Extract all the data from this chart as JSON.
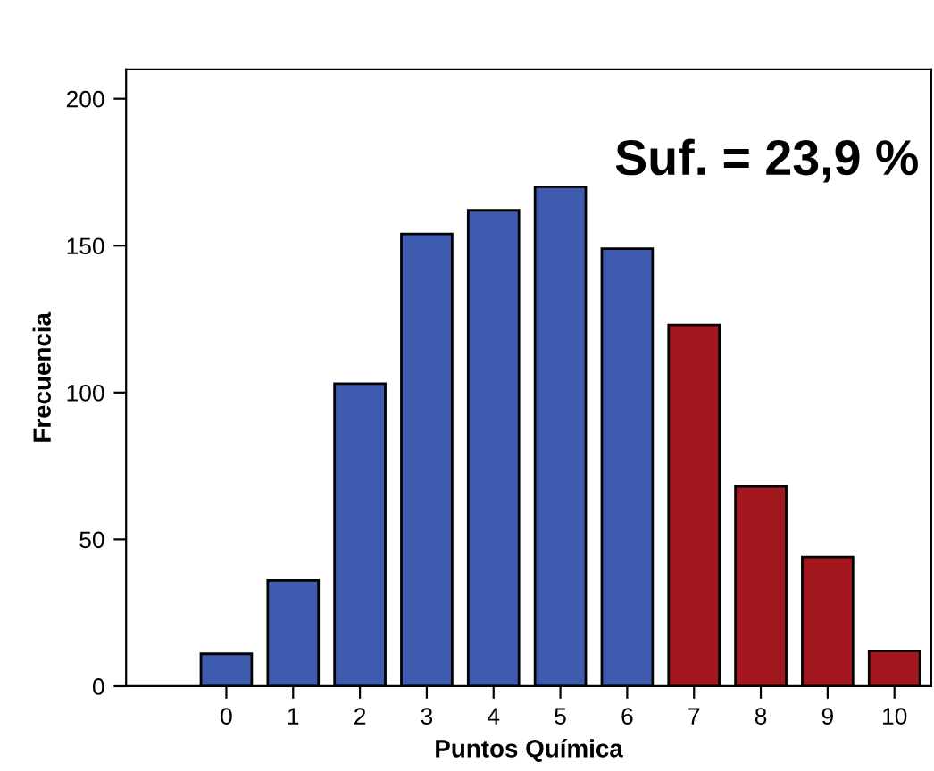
{
  "chart_data": {
    "type": "bar",
    "xlabel": "Puntos Química",
    "ylabel": "Frecuencia",
    "categories": [
      "0",
      "1",
      "2",
      "3",
      "4",
      "5",
      "6",
      "7",
      "8",
      "9",
      "10"
    ],
    "values": [
      11,
      36,
      103,
      154,
      162,
      170,
      149,
      123,
      68,
      44,
      12
    ],
    "colors": [
      "#3f5baf",
      "#3f5baf",
      "#3f5baf",
      "#3f5baf",
      "#3f5baf",
      "#3f5baf",
      "#3f5baf",
      "#a3181e",
      "#a3181e",
      "#a3181e",
      "#a3181e"
    ],
    "ylim": [
      0,
      210
    ],
    "yticks": [
      0,
      50,
      100,
      150,
      200
    ],
    "grid": false,
    "legend": false,
    "annotations": [
      "Suf. = 23,9 %"
    ]
  }
}
